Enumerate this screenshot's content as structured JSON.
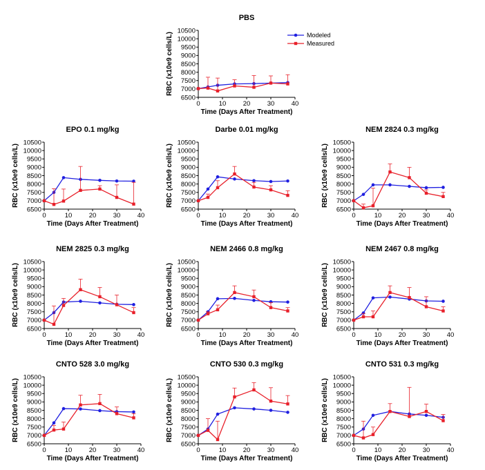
{
  "colors": {
    "modeled": "#1f1fe0",
    "measured": "#e8202a",
    "axis": "#000000"
  },
  "legend": {
    "modeled": "Modeled",
    "measured": "Measured",
    "placement": "top-right"
  },
  "chart_data": [
    {
      "type": "line",
      "title": "PBS",
      "xlabel": "Time (Days After Treatment)",
      "ylabel": "RBC (x10e9 cells/L)",
      "xlim": [
        0,
        40
      ],
      "ylim": [
        6500,
        10500
      ],
      "x_ticks": [
        "0",
        "10",
        "20",
        "30",
        "40"
      ],
      "y_ticks": [
        "6500",
        "7000",
        "7500",
        "8000",
        "8500",
        "9000",
        "9500",
        "10000",
        "10500"
      ],
      "series": [
        {
          "name": "Modeled",
          "x": [
            0,
            4,
            8,
            15,
            23,
            30,
            37
          ],
          "y": [
            7020,
            7120,
            7220,
            7300,
            7320,
            7350,
            7380
          ]
        },
        {
          "name": "Measured",
          "x": [
            0,
            4,
            8,
            15,
            23,
            30,
            37
          ],
          "y": [
            7020,
            7050,
            6880,
            7180,
            7100,
            7350,
            7300
          ],
          "error_upper": [
            7020,
            7700,
            7650,
            7550,
            7800,
            7780,
            7850
          ]
        }
      ]
    },
    {
      "type": "line",
      "title": "EPO 0.1 mg/kg",
      "xlabel": "Time (Days After Treatment)",
      "ylabel": "RBC (x10e9 cells/L)",
      "xlim": [
        0,
        40
      ],
      "ylim": [
        6500,
        10500
      ],
      "x_ticks": [
        "0",
        "10",
        "20",
        "30",
        "40"
      ],
      "y_ticks": [
        "6500",
        "7000",
        "7500",
        "8000",
        "8500",
        "9000",
        "9500",
        "10000",
        "10500"
      ],
      "series": [
        {
          "name": "Modeled",
          "x": [
            0,
            4,
            8,
            15,
            23,
            30,
            37
          ],
          "y": [
            7000,
            7500,
            8380,
            8280,
            8220,
            8180,
            8170
          ]
        },
        {
          "name": "Measured",
          "x": [
            0,
            4,
            8,
            15,
            23,
            30,
            37
          ],
          "y": [
            7000,
            6780,
            6980,
            7620,
            7700,
            7200,
            6800
          ],
          "error_upper": [
            7000,
            7720,
            7700,
            9050,
            7900,
            7950,
            8100
          ]
        }
      ]
    },
    {
      "type": "line",
      "title": "Darbe 0.01 mg/kg",
      "xlabel": "Time (Days After Treatment)",
      "ylabel": "RBC (x10e9 cells/L)",
      "xlim": [
        0,
        40
      ],
      "ylim": [
        6500,
        10500
      ],
      "x_ticks": [
        "0",
        "10",
        "20",
        "30",
        "40"
      ],
      "y_ticks": [
        "6500",
        "7000",
        "7500",
        "8000",
        "8500",
        "9000",
        "9500",
        "10000",
        "10500"
      ],
      "series": [
        {
          "name": "Modeled",
          "x": [
            0,
            4,
            8,
            15,
            23,
            30,
            37
          ],
          "y": [
            7000,
            7700,
            8430,
            8300,
            8200,
            8150,
            8180
          ]
        },
        {
          "name": "Measured",
          "x": [
            0,
            4,
            8,
            15,
            23,
            30,
            37
          ],
          "y": [
            7000,
            7200,
            7780,
            8600,
            7820,
            7650,
            7320
          ],
          "error_upper": [
            7000,
            7400,
            8200,
            9050,
            8100,
            7900,
            7600
          ]
        }
      ]
    },
    {
      "type": "line",
      "title": "NEM 2824 0.3 mg/kg",
      "xlabel": "Time (Days After Treatment)",
      "ylabel": "RBC (x10e9 cells/L)",
      "xlim": [
        0,
        40
      ],
      "ylim": [
        6500,
        10500
      ],
      "x_ticks": [
        "0",
        "10",
        "20",
        "30",
        "40"
      ],
      "y_ticks": [
        "6500",
        "7000",
        "7500",
        "8000",
        "8500",
        "9000",
        "9500",
        "10000",
        "10500"
      ],
      "series": [
        {
          "name": "Modeled",
          "x": [
            0,
            4,
            8,
            15,
            23,
            30,
            37
          ],
          "y": [
            7000,
            7380,
            7950,
            7950,
            7860,
            7780,
            7800
          ]
        },
        {
          "name": "Measured",
          "x": [
            0,
            4,
            8,
            15,
            23,
            30,
            37
          ],
          "y": [
            7000,
            6580,
            6700,
            8720,
            8380,
            7450,
            7250
          ],
          "error_upper": [
            7000,
            6800,
            7750,
            9200,
            9000,
            7650,
            7500
          ]
        }
      ]
    },
    {
      "type": "line",
      "title": "NEM 2825 0.3 mg/kg",
      "xlabel": "Time (Days After Treatment)",
      "ylabel": "RBC (x10e9 cells/L)",
      "xlim": [
        0,
        40
      ],
      "ylim": [
        6500,
        10500
      ],
      "x_ticks": [
        "0",
        "10",
        "20",
        "30",
        "40"
      ],
      "y_ticks": [
        "6500",
        "7000",
        "7500",
        "8000",
        "8500",
        "9000",
        "9500",
        "10000",
        "10500"
      ],
      "series": [
        {
          "name": "Modeled",
          "x": [
            0,
            4,
            8,
            15,
            23,
            30,
            37
          ],
          "y": [
            7000,
            7450,
            8080,
            8130,
            8030,
            7950,
            7930
          ]
        },
        {
          "name": "Measured",
          "x": [
            0,
            4,
            8,
            15,
            23,
            30,
            37
          ],
          "y": [
            7000,
            6750,
            7880,
            8820,
            8400,
            7920,
            7450
          ],
          "error_upper": [
            7000,
            7850,
            8300,
            9450,
            8950,
            8500,
            7750
          ]
        }
      ]
    },
    {
      "type": "line",
      "title": "NEM 2466 0.8 mg/kg",
      "xlabel": "Time (Days After Treatment)",
      "ylabel": "RBC (x10e9 cells/L)",
      "xlim": [
        0,
        40
      ],
      "ylim": [
        6500,
        10500
      ],
      "x_ticks": [
        "0",
        "10",
        "20",
        "30",
        "40"
      ],
      "y_ticks": [
        "6500",
        "7000",
        "7500",
        "8000",
        "8500",
        "9000",
        "9500",
        "10000",
        "10500"
      ],
      "series": [
        {
          "name": "Modeled",
          "x": [
            0,
            4,
            8,
            15,
            23,
            30,
            37
          ],
          "y": [
            7000,
            7500,
            8280,
            8300,
            8180,
            8100,
            8080
          ]
        },
        {
          "name": "Measured",
          "x": [
            0,
            4,
            8,
            15,
            23,
            30,
            37
          ],
          "y": [
            7000,
            7380,
            7620,
            8650,
            8400,
            7750,
            7550
          ],
          "error_upper": [
            7000,
            7500,
            7900,
            9050,
            8800,
            8050,
            7750
          ]
        }
      ]
    },
    {
      "type": "line",
      "title": "NEM 2467 0.8 mg/kg",
      "xlabel": "Time (Days After Treatment)",
      "ylabel": "RBC (x10e9 cells/L)",
      "xlim": [
        0,
        40
      ],
      "ylim": [
        6500,
        10500
      ],
      "x_ticks": [
        "0",
        "10",
        "20",
        "30",
        "40"
      ],
      "y_ticks": [
        "6500",
        "7000",
        "7500",
        "8000",
        "8500",
        "9000",
        "9500",
        "10000",
        "10500"
      ],
      "series": [
        {
          "name": "Modeled",
          "x": [
            0,
            4,
            8,
            15,
            23,
            30,
            37
          ],
          "y": [
            7000,
            7430,
            8330,
            8380,
            8260,
            8150,
            8130
          ]
        },
        {
          "name": "Measured",
          "x": [
            0,
            4,
            8,
            15,
            23,
            30,
            37
          ],
          "y": [
            7000,
            7200,
            7200,
            8650,
            8350,
            7800,
            7550
          ],
          "error_upper": [
            7000,
            7400,
            7550,
            9050,
            8950,
            8400,
            7800
          ]
        }
      ]
    },
    {
      "type": "line",
      "title": "CNTO 528 3.0 mg/kg",
      "xlabel": "Time (Days After Treatment)",
      "ylabel": "RBC (x10e9 cells/L)",
      "xlim": [
        0,
        40
      ],
      "ylim": [
        6500,
        10500
      ],
      "x_ticks": [
        "0",
        "10",
        "20",
        "30",
        "40"
      ],
      "y_ticks": [
        "6500",
        "7000",
        "7500",
        "8000",
        "8500",
        "9000",
        "9500",
        "10000",
        "10500"
      ],
      "series": [
        {
          "name": "Modeled",
          "x": [
            0,
            4,
            8,
            15,
            23,
            30,
            37
          ],
          "y": [
            7000,
            7750,
            8600,
            8580,
            8480,
            8420,
            8400
          ]
        },
        {
          "name": "Measured",
          "x": [
            0,
            4,
            8,
            15,
            23,
            30,
            37
          ],
          "y": [
            7000,
            7320,
            7380,
            8820,
            8900,
            8300,
            8050
          ],
          "error_upper": [
            7000,
            7600,
            7800,
            9400,
            9450,
            8700,
            8300
          ]
        }
      ]
    },
    {
      "type": "line",
      "title": "CNTO 530 0.3 mg/kg",
      "xlabel": "Time (Days After Treatment)",
      "ylabel": "RBC (x10e9 cells/L)",
      "xlim": [
        0,
        40
      ],
      "ylim": [
        6500,
        10500
      ],
      "x_ticks": [
        "0",
        "10",
        "20",
        "30",
        "40"
      ],
      "y_ticks": [
        "6500",
        "7000",
        "7500",
        "8000",
        "8500",
        "9000",
        "9500",
        "10000",
        "10500"
      ],
      "series": [
        {
          "name": "Modeled",
          "x": [
            0,
            4,
            8,
            15,
            23,
            30,
            37
          ],
          "y": [
            7000,
            7380,
            8270,
            8650,
            8580,
            8500,
            8380
          ]
        },
        {
          "name": "Measured",
          "x": [
            0,
            4,
            8,
            15,
            23,
            30,
            37
          ],
          "y": [
            7000,
            7300,
            6750,
            9300,
            9720,
            9050,
            8880
          ],
          "error_upper": [
            7000,
            8000,
            7850,
            9830,
            10150,
            9850,
            9380
          ]
        }
      ]
    },
    {
      "type": "line",
      "title": "CNTO 531 0.3 mg/kg",
      "xlabel": "Time (Days After Treatment)",
      "ylabel": "RBC (x10e9 cells/L)",
      "xlim": [
        0,
        40
      ],
      "ylim": [
        6500,
        10500
      ],
      "x_ticks": [
        "0",
        "10",
        "20",
        "30",
        "40"
      ],
      "y_ticks": [
        "6500",
        "7000",
        "7500",
        "8000",
        "8500",
        "9000",
        "9500",
        "10000",
        "10500"
      ],
      "series": [
        {
          "name": "Modeled",
          "x": [
            0,
            4,
            8,
            15,
            23,
            30,
            37
          ],
          "y": [
            7000,
            7380,
            8200,
            8430,
            8280,
            8200,
            8080
          ]
        },
        {
          "name": "Measured",
          "x": [
            0,
            4,
            8,
            15,
            23,
            30,
            37
          ],
          "y": [
            7000,
            6850,
            7050,
            8430,
            8130,
            8430,
            7880
          ],
          "error_upper": [
            7000,
            7850,
            7500,
            8900,
            9870,
            8870,
            8250
          ]
        }
      ]
    }
  ]
}
